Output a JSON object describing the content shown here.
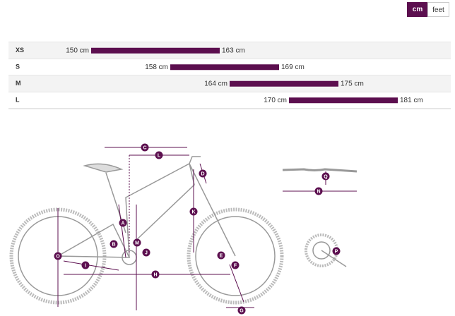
{
  "unit_toggle": {
    "options": [
      "cm",
      "feet"
    ],
    "selected": "cm"
  },
  "size_table": {
    "rows": [
      {
        "size": "XS",
        "min": 150,
        "max": 163,
        "min_label": "150 cm",
        "max_label": "163 cm"
      },
      {
        "size": "S",
        "min": 158,
        "max": 169,
        "min_label": "158 cm",
        "max_label": "169 cm"
      },
      {
        "size": "M",
        "min": 164,
        "max": 175,
        "min_label": "164 cm",
        "max_label": "175 cm"
      },
      {
        "size": "L",
        "min": 170,
        "max": 181,
        "min_label": "170 cm",
        "max_label": "181 cm"
      }
    ]
  },
  "diagram": {
    "markers": [
      "A",
      "B",
      "C",
      "D",
      "E",
      "F",
      "G",
      "H",
      "I",
      "J",
      "K",
      "L",
      "M",
      "N",
      "O",
      "P",
      "Q"
    ]
  }
}
